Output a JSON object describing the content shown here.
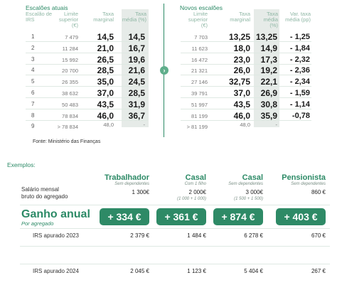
{
  "current_table": {
    "section_title": "Escalões atuais",
    "headers": {
      "bracket": "Escalão de IRS",
      "limit": "Limite superior (€)",
      "marginal": "Taxa marginal",
      "average": "Taxa média (%)"
    },
    "rows": [
      {
        "bracket": "1",
        "limit": "7 479",
        "marginal": "14,5",
        "average": "14,5"
      },
      {
        "bracket": "2",
        "limit": "11 284",
        "marginal": "21,0",
        "average": "16,7"
      },
      {
        "bracket": "3",
        "limit": "15 992",
        "marginal": "26,5",
        "average": "19,6"
      },
      {
        "bracket": "4",
        "limit": "20 700",
        "marginal": "28,5",
        "average": "21,6"
      },
      {
        "bracket": "5",
        "limit": "26 355",
        "marginal": "35,0",
        "average": "24,5"
      },
      {
        "bracket": "6",
        "limit": "38 632",
        "marginal": "37,0",
        "average": "28,5"
      },
      {
        "bracket": "7",
        "limit": "50 483",
        "marginal": "43,5",
        "average": "31,9"
      },
      {
        "bracket": "8",
        "limit": "78 834",
        "marginal": "46,0",
        "average": "36,7"
      },
      {
        "bracket": "9",
        "limit": "> 78 834",
        "marginal": "48,0",
        "average": "-"
      }
    ]
  },
  "new_table": {
    "section_title": "Novos escalões",
    "headers": {
      "limit": "Limite superior (€)",
      "marginal": "Taxa marginal",
      "average": "Taxa média (%)",
      "variation": "Var. taxa média (pp)"
    },
    "rows": [
      {
        "limit": "7 703",
        "marginal": "13,25",
        "average": "13,25",
        "variation": "- 1,25"
      },
      {
        "limit": "11 623",
        "marginal": "18,0",
        "average": "14,9",
        "variation": "- 1,84"
      },
      {
        "limit": "16 472",
        "marginal": "23,0",
        "average": "17,3",
        "variation": "- 2,32"
      },
      {
        "limit": "21 321",
        "marginal": "26,0",
        "average": "19,2",
        "variation": "- 2,36"
      },
      {
        "limit": "27 146",
        "marginal": "32,75",
        "average": "22,1",
        "variation": "- 2,34"
      },
      {
        "limit": "39 791",
        "marginal": "37,0",
        "average": "26,9",
        "variation": "- 1,59"
      },
      {
        "limit": "51 997",
        "marginal": "43,5",
        "average": "30,8",
        "variation": "- 1,14"
      },
      {
        "limit": "81 199",
        "marginal": "46,0",
        "average": "35,9",
        "variation": "-0,78"
      },
      {
        "limit": "> 81 199",
        "marginal": "48,0",
        "average": "-",
        "variation": ""
      }
    ]
  },
  "source": "Fonte: Ministério das Finanças",
  "examples": {
    "title": "Exemplos:",
    "columns": [
      {
        "title": "Trabalhador",
        "subtitle": "Sem dependentes"
      },
      {
        "title": "Casal",
        "subtitle": "Com 1 filho"
      },
      {
        "title": "Casal",
        "subtitle": "Sem dependentes"
      },
      {
        "title": "Pensionista",
        "subtitle": "Sem dependentes"
      }
    ],
    "salary": {
      "label_line1": "Salário mensal",
      "label_line2": "bruto do agregado",
      "values": [
        "1 300€",
        "2 000€",
        "3 000€",
        "860 €"
      ],
      "notes": [
        "",
        "(1 000 + 1 000)",
        "(1 500 + 1 500)",
        ""
      ]
    },
    "gain": {
      "label": "Ganho anual",
      "sublabel": "Por agregado",
      "values": [
        "+ 334 €",
        "+ 361 €",
        "+ 874 €",
        "+ 403 €"
      ]
    },
    "irs_2023": {
      "label": "IRS apurado 2023",
      "values": [
        "2 379 €",
        "1 484 €",
        "6 278 €",
        "670 €"
      ]
    },
    "irs_2024": {
      "label": "IRS apurado 2024",
      "values": [
        "2 045 €",
        "1 123 €",
        "5 404 €",
        "267 €"
      ]
    }
  },
  "colors": {
    "accent": "#2c8a66",
    "shade": "#e6ebe8"
  },
  "icons": {
    "arrow": "chevron-right-icon"
  }
}
